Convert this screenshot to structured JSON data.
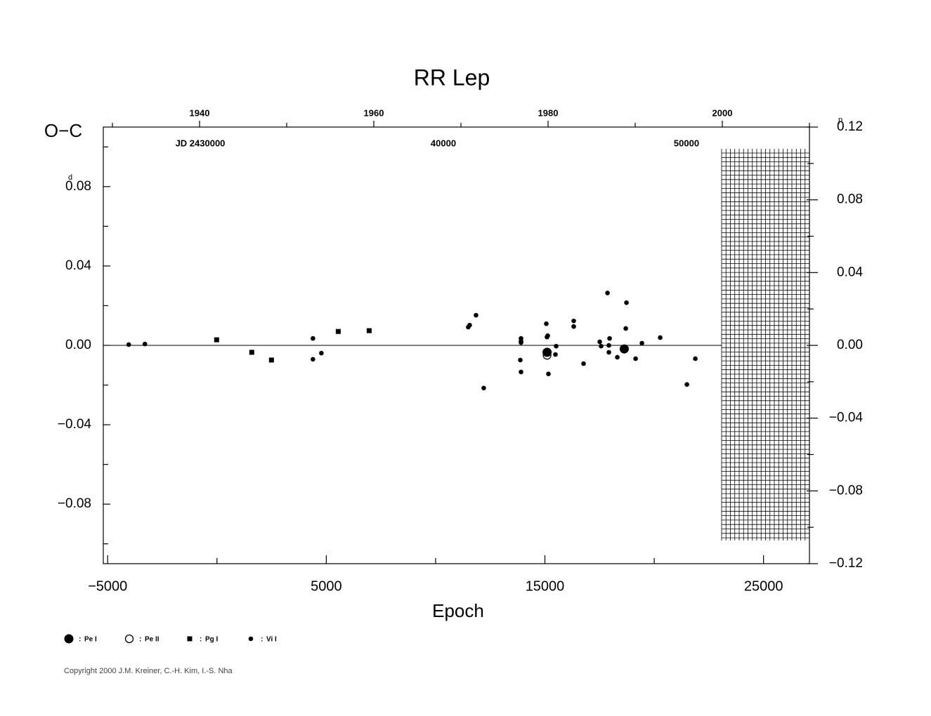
{
  "chart_data": {
    "type": "scatter",
    "title": "RR Lep",
    "y_label": "O−C",
    "y_unit": "d",
    "y2_unit": "p",
    "x_label": "Epoch",
    "xlim": [
      -5200,
      27100
    ],
    "xticks": [
      {
        "value": -5000,
        "label": "−5000"
      },
      5000,
      15000,
      25000
    ],
    "xminor_ticks": [
      0,
      10000,
      20000
    ],
    "ylim": [
      -0.11,
      0.11
    ],
    "yticks": [
      {
        "value": 0.08,
        "label": "0.08"
      },
      {
        "value": 0.04,
        "label": "0.04"
      },
      {
        "value": 0,
        "label": "0.00"
      },
      {
        "value": -0.04,
        "label": "−0.04"
      },
      {
        "value": -0.08,
        "label": "−0.08"
      }
    ],
    "yminor_ticks": [
      0.1,
      0.06,
      0.02,
      -0.02,
      -0.06,
      -0.1
    ],
    "y2lim": [
      -0.12,
      0.12
    ],
    "y2ticks": [
      {
        "value": 0.12,
        "label": "0.12"
      },
      {
        "value": 0.08,
        "label": "0.08"
      },
      {
        "value": 0.04,
        "label": "0.04"
      },
      {
        "value": 0,
        "label": "0.00"
      },
      {
        "value": -0.04,
        "label": "−0.04"
      },
      {
        "value": -0.08,
        "label": "−0.08"
      },
      {
        "value": -0.12,
        "label": "−0.12"
      }
    ],
    "y2minor_ticks": [
      0.1,
      0.06,
      0.02,
      -0.02,
      -0.06,
      -0.1
    ],
    "x2lim": [
      1928.95,
      2010
    ],
    "x2ticks": [
      1940,
      1960,
      1980,
      2000
    ],
    "x2minor_ticks": [
      1930,
      1950,
      1970,
      1990,
      2010
    ],
    "jdlim": [
      2426012,
      2455058
    ],
    "jd_ticks": [
      {
        "value": 2430000,
        "label": "JD 2430000"
      },
      {
        "value": 2440000,
        "label": "40000"
      },
      {
        "value": 2450000,
        "label": "50000"
      }
    ],
    "zero_line": true,
    "legend_separator": ":",
    "series": [
      {
        "name": "Pe I",
        "marker": "dot-large",
        "color": "#000000",
        "x": [
          15100,
          18630
        ],
        "values": [
          -0.0035,
          -0.0018
        ]
      },
      {
        "name": "Pe II",
        "marker": "circle-open",
        "color": "#000000",
        "x": [
          15100
        ],
        "values": [
          -0.005
        ]
      },
      {
        "name": "Pg I",
        "marker": "square",
        "color": "#000000",
        "x": [
          -16,
          1592,
          2492,
          5547,
          6961
        ],
        "values": [
          0.0028,
          -0.0035,
          -0.0074,
          0.007,
          0.0074
        ]
      },
      {
        "name": "Vi I",
        "marker": "dot",
        "color": "#000000",
        "x": [
          -4035,
          -3296,
          4389,
          4389,
          4775,
          11495,
          11559,
          11849,
          12203,
          13875,
          13907,
          13907,
          13907,
          13907,
          15064,
          15096,
          15129,
          15161,
          15514,
          15482,
          16318,
          16318,
          16768,
          17508,
          17572,
          17862,
          17926,
          17958,
          17926,
          18312,
          18730,
          18698,
          19148,
          19437,
          20273,
          21495,
          21881
        ],
        "values": [
          0.0004,
          0.0007,
          0.0035,
          -0.007,
          -0.0039,
          0.0092,
          0.0102,
          0.0152,
          -0.0215,
          -0.0074,
          0.0035,
          0.0021,
          0.0014,
          -0.0134,
          0.0109,
          0.0042,
          0.0049,
          -0.0144,
          -0.0004,
          -0.0046,
          0.0123,
          0.0095,
          -0.0092,
          0.0018,
          -0.0004,
          0.0264,
          0,
          0.0035,
          -0.0035,
          -0.006,
          0.0215,
          0.0085,
          -0.0067,
          0.0011,
          0.0039,
          -0.0197,
          -0.0067
        ]
      }
    ],
    "copyright": "Copyright 2000 J.M. Kreiner, C.-H. Kim, I.-S. Nha"
  }
}
